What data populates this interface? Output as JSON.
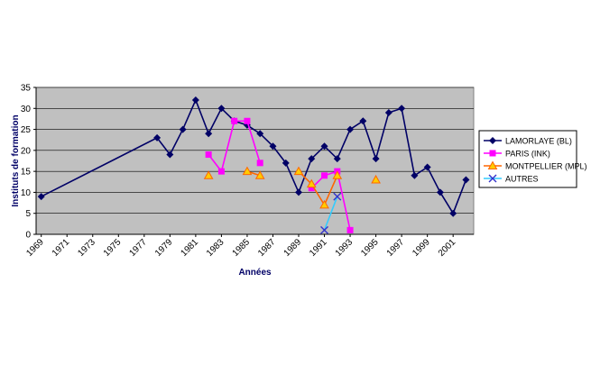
{
  "chart_data": {
    "type": "line",
    "xlabel": "Années",
    "ylabel": "Instituts de formation",
    "xlim": [
      1969,
      2001
    ],
    "ylim": [
      0,
      35
    ],
    "y_ticks": [
      0,
      5,
      10,
      15,
      20,
      25,
      30,
      35
    ],
    "x_ticks": [
      1969,
      1971,
      1973,
      1975,
      1977,
      1979,
      1981,
      1983,
      1985,
      1987,
      1989,
      1991,
      1993,
      1995,
      1997,
      1999,
      2001
    ],
    "grid": "horizontal",
    "legend_position": "right",
    "plot_background": "#c0c0c0",
    "series": [
      {
        "name": "LAMORLAYE (BL)",
        "color": "#000066",
        "marker": "diamond",
        "points": [
          [
            1969,
            9
          ],
          [
            1978,
            23
          ],
          [
            1979,
            19
          ],
          [
            1980,
            25
          ],
          [
            1981,
            32
          ],
          [
            1982,
            24
          ],
          [
            1983,
            30
          ],
          [
            1984,
            27
          ],
          [
            1985,
            26
          ],
          [
            1986,
            24
          ],
          [
            1987,
            21
          ],
          [
            1988,
            17
          ],
          [
            1989,
            10
          ],
          [
            1990,
            18
          ],
          [
            1991,
            21
          ],
          [
            1992,
            18
          ],
          [
            1993,
            25
          ],
          [
            1994,
            27
          ],
          [
            1995,
            18
          ],
          [
            1996,
            29
          ],
          [
            1997,
            30
          ],
          [
            1998,
            14
          ],
          [
            1999,
            16
          ],
          [
            2000,
            10
          ],
          [
            2001,
            5
          ],
          [
            2002,
            13
          ]
        ]
      },
      {
        "name": "PARIS (INK)",
        "color": "#ff00ff",
        "marker": "square",
        "points": [
          [
            1982,
            19
          ],
          [
            1983,
            15
          ],
          [
            1984,
            27
          ],
          [
            1985,
            27
          ],
          [
            1986,
            17
          ],
          null,
          [
            1990,
            11
          ],
          [
            1991,
            14
          ],
          [
            1992,
            15
          ],
          [
            1993,
            1
          ]
        ]
      },
      {
        "name": "MONTPELLIER (MPL)",
        "color": "#ff6600",
        "marker": "triangle",
        "marker_fill": "#ffcc00",
        "points": [
          [
            1982,
            14
          ],
          null,
          [
            1985,
            15
          ],
          [
            1986,
            14
          ],
          null,
          [
            1989,
            15
          ],
          [
            1990,
            12
          ],
          [
            1991,
            7
          ],
          [
            1992,
            14
          ],
          null,
          [
            1995,
            13
          ]
        ]
      },
      {
        "name": "AUTRES",
        "color": "#33ccff",
        "marker": "x",
        "marker_color": "#3333cc",
        "points": [
          [
            1991,
            1
          ],
          [
            1992,
            9
          ]
        ]
      }
    ]
  }
}
